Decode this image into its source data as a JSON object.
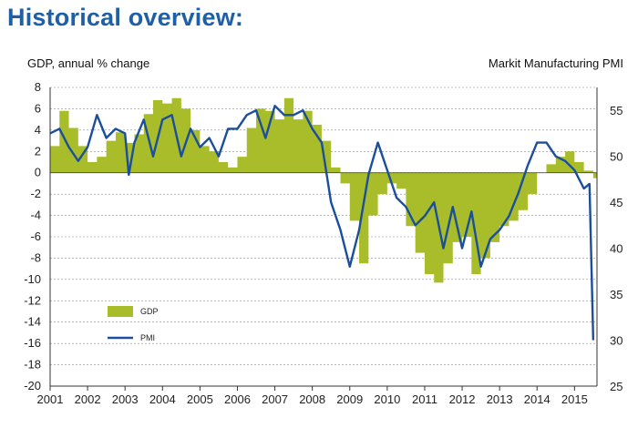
{
  "header": {
    "title": "Historical overview:"
  },
  "colors": {
    "gdp": "#a9bd2a",
    "pmi": "#1b4f9c",
    "grid": "#888888"
  },
  "chart_data": {
    "type": "area",
    "ylabel_left": "GDP, annual % change",
    "ylabel_right": "Markit Manufacturing PMI",
    "ylim_left": [
      -20,
      8
    ],
    "ylim_right": [
      25,
      57.5
    ],
    "xlim": [
      2001,
      2015.6
    ],
    "yticks_left": [
      "8",
      "6",
      "4",
      "2",
      "0",
      "-2",
      "-4",
      "-6",
      "-8",
      "-10",
      "-12",
      "-14",
      "-16",
      "-18",
      "-20"
    ],
    "yticks_right": [
      "55",
      "50",
      "45",
      "40",
      "35",
      "30",
      "25"
    ],
    "xticks": [
      "2001",
      "2002",
      "2003",
      "2004",
      "2005",
      "2006",
      "2007",
      "2008",
      "2009",
      "2010",
      "2011",
      "2012",
      "2013",
      "2014",
      "2015"
    ],
    "legend": {
      "gdp": "GDP",
      "pmi": "PMI",
      "placement": "lower-left"
    },
    "series": [
      {
        "name": "GDP",
        "style": "area",
        "axis": "left",
        "x": [
          2001.0,
          2001.25,
          2001.5,
          2001.75,
          2002.0,
          2002.25,
          2002.5,
          2002.75,
          2003.0,
          2003.25,
          2003.5,
          2003.75,
          2004.0,
          2004.25,
          2004.5,
          2004.75,
          2005.0,
          2005.25,
          2005.5,
          2005.75,
          2006.0,
          2006.25,
          2006.5,
          2006.75,
          2007.0,
          2007.25,
          2007.5,
          2007.75,
          2008.0,
          2008.25,
          2008.5,
          2008.75,
          2009.0,
          2009.25,
          2009.5,
          2009.75,
          2010.0,
          2010.25,
          2010.5,
          2010.75,
          2011.0,
          2011.25,
          2011.5,
          2011.75,
          2012.0,
          2012.25,
          2012.5,
          2012.75,
          2013.0,
          2013.25,
          2013.5,
          2013.75,
          2014.0,
          2014.25,
          2014.5,
          2014.75,
          2015.0,
          2015.25,
          2015.5
        ],
        "values": [
          2.5,
          5.8,
          4.2,
          2.5,
          1.0,
          1.5,
          3.0,
          3.8,
          2.8,
          3.6,
          5.5,
          6.8,
          6.5,
          7.0,
          6.0,
          4.0,
          2.5,
          2.0,
          1.0,
          0.5,
          1.5,
          4.2,
          6.0,
          5.8,
          5.0,
          7.0,
          5.0,
          5.8,
          4.5,
          3.0,
          0.5,
          -1.0,
          -4.5,
          -8.5,
          -4.0,
          -2.0,
          -1.0,
          -1.5,
          -5.0,
          -7.5,
          -9.5,
          -10.3,
          -8.5,
          -6.5,
          -6.0,
          -9.5,
          -8.0,
          -6.5,
          -5.0,
          -4.5,
          -3.5,
          -2.0,
          0.0,
          0.8,
          1.5,
          2.0,
          1.0,
          0.2,
          -0.5
        ]
      },
      {
        "name": "PMI",
        "style": "line",
        "axis": "right",
        "x": [
          2001.0,
          2001.25,
          2001.5,
          2001.75,
          2002.0,
          2002.25,
          2002.5,
          2002.75,
          2003.0,
          2003.1,
          2003.25,
          2003.5,
          2003.75,
          2004.0,
          2004.25,
          2004.5,
          2004.75,
          2005.0,
          2005.25,
          2005.5,
          2005.75,
          2006.0,
          2006.25,
          2006.5,
          2006.75,
          2007.0,
          2007.25,
          2007.5,
          2007.75,
          2008.0,
          2008.25,
          2008.5,
          2008.75,
          2009.0,
          2009.25,
          2009.5,
          2009.75,
          2010.0,
          2010.25,
          2010.5,
          2010.75,
          2011.0,
          2011.25,
          2011.5,
          2011.75,
          2012.0,
          2012.25,
          2012.5,
          2012.75,
          2013.0,
          2013.25,
          2013.5,
          2013.75,
          2014.0,
          2014.25,
          2014.5,
          2014.75,
          2015.0,
          2015.25,
          2015.4,
          2015.5
        ],
        "values": [
          52.5,
          53.0,
          51.0,
          49.5,
          51.0,
          54.5,
          52.0,
          53.0,
          52.5,
          48.0,
          51.5,
          54.0,
          50.0,
          54.0,
          54.5,
          50.0,
          53.0,
          51.0,
          52.0,
          50.0,
          53.0,
          53.0,
          54.5,
          55.0,
          52.0,
          55.5,
          54.5,
          54.5,
          55.0,
          53.0,
          51.5,
          45.0,
          42.0,
          38.0,
          42.0,
          48.0,
          51.5,
          48.5,
          45.5,
          44.5,
          42.5,
          43.5,
          45.0,
          40.0,
          44.5,
          40.0,
          44.0,
          38.0,
          41.0,
          42.0,
          43.5,
          46.0,
          49.0,
          51.5,
          51.5,
          50.0,
          49.5,
          48.5,
          46.5,
          47.0,
          30.0
        ]
      }
    ]
  }
}
